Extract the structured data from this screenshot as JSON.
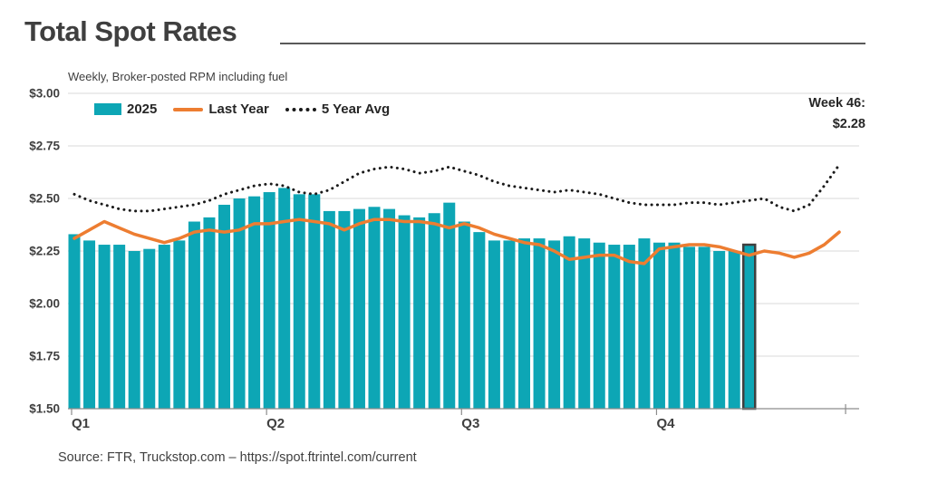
{
  "title": "Total Spot Rates",
  "subtitle": "Weekly, Broker-posted RPM including fuel",
  "annotation": {
    "line1": "Week 46:",
    "line2": "$2.28"
  },
  "source": "Source: FTR, Truckstop.com – https://spot.ftrintel.com/current",
  "legend": {
    "items": [
      {
        "label": "2025"
      },
      {
        "label": "Last Year"
      },
      {
        "label": "5 Year Avg"
      }
    ]
  },
  "colors": {
    "bars": "#0da6b5",
    "last_year": "#ed7d31",
    "five_year_avg": "#1a1a1a",
    "highlight_stroke": "#3f3f3f",
    "grid": "#d9d9d9",
    "axis": "#8c8c8c",
    "tick": "#8c8c8c",
    "text": "#404040"
  },
  "chart_data": {
    "type": "bar",
    "title": "Total Spot Rates",
    "subtitle": "Weekly, Broker-posted RPM including fuel",
    "x_unit": "week",
    "total_weeks": 52,
    "x_ticks": {
      "labels": [
        "Q1",
        "Q2",
        "Q3",
        "Q4"
      ],
      "weeks": [
        1,
        14,
        27,
        40
      ],
      "end_tick_week": 52
    },
    "y_axis": {
      "min": 1.5,
      "max": 3.0,
      "step": 0.25,
      "tick_labels": [
        "$3.00",
        "$2.75",
        "$2.50",
        "$2.25",
        "$2.00",
        "$1.75",
        "$1.50"
      ],
      "tick_values": [
        3.0,
        2.75,
        2.5,
        2.25,
        2.0,
        1.75,
        1.5
      ]
    },
    "grid": true,
    "legend_position": "top-left",
    "series": [
      {
        "name": "2025",
        "type": "bar",
        "highlight_index": 45,
        "values": [
          2.33,
          2.3,
          2.28,
          2.28,
          2.25,
          2.26,
          2.28,
          2.3,
          2.39,
          2.41,
          2.47,
          2.5,
          2.51,
          2.53,
          2.55,
          2.52,
          2.52,
          2.44,
          2.44,
          2.45,
          2.46,
          2.45,
          2.42,
          2.41,
          2.43,
          2.48,
          2.39,
          2.34,
          2.3,
          2.3,
          2.31,
          2.31,
          2.3,
          2.32,
          2.31,
          2.29,
          2.28,
          2.28,
          2.31,
          2.29,
          2.29,
          2.27,
          2.27,
          2.25,
          2.25,
          2.28
        ]
      },
      {
        "name": "Last Year",
        "type": "line",
        "values": [
          2.31,
          2.35,
          2.39,
          2.36,
          2.33,
          2.31,
          2.29,
          2.31,
          2.34,
          2.35,
          2.34,
          2.35,
          2.38,
          2.38,
          2.39,
          2.4,
          2.39,
          2.38,
          2.35,
          2.38,
          2.4,
          2.4,
          2.39,
          2.39,
          2.38,
          2.36,
          2.38,
          2.36,
          2.33,
          2.31,
          2.29,
          2.28,
          2.25,
          2.21,
          2.22,
          2.23,
          2.23,
          2.2,
          2.19,
          2.26,
          2.27,
          2.28,
          2.28,
          2.27,
          2.25,
          2.23,
          2.25,
          2.24,
          2.22,
          2.24,
          2.28,
          2.34
        ]
      },
      {
        "name": "5 Year Avg",
        "type": "dotted-line",
        "values": [
          2.52,
          2.49,
          2.47,
          2.45,
          2.44,
          2.44,
          2.45,
          2.46,
          2.47,
          2.49,
          2.52,
          2.54,
          2.56,
          2.57,
          2.56,
          2.53,
          2.52,
          2.54,
          2.58,
          2.62,
          2.64,
          2.65,
          2.64,
          2.62,
          2.63,
          2.65,
          2.63,
          2.61,
          2.58,
          2.56,
          2.55,
          2.54,
          2.53,
          2.54,
          2.53,
          2.52,
          2.5,
          2.48,
          2.47,
          2.47,
          2.47,
          2.48,
          2.48,
          2.47,
          2.48,
          2.49,
          2.5,
          2.46,
          2.44,
          2.47,
          2.56,
          2.66
        ]
      }
    ],
    "callout": {
      "label": "Week 46:",
      "value": "$2.28",
      "week": 46
    }
  }
}
